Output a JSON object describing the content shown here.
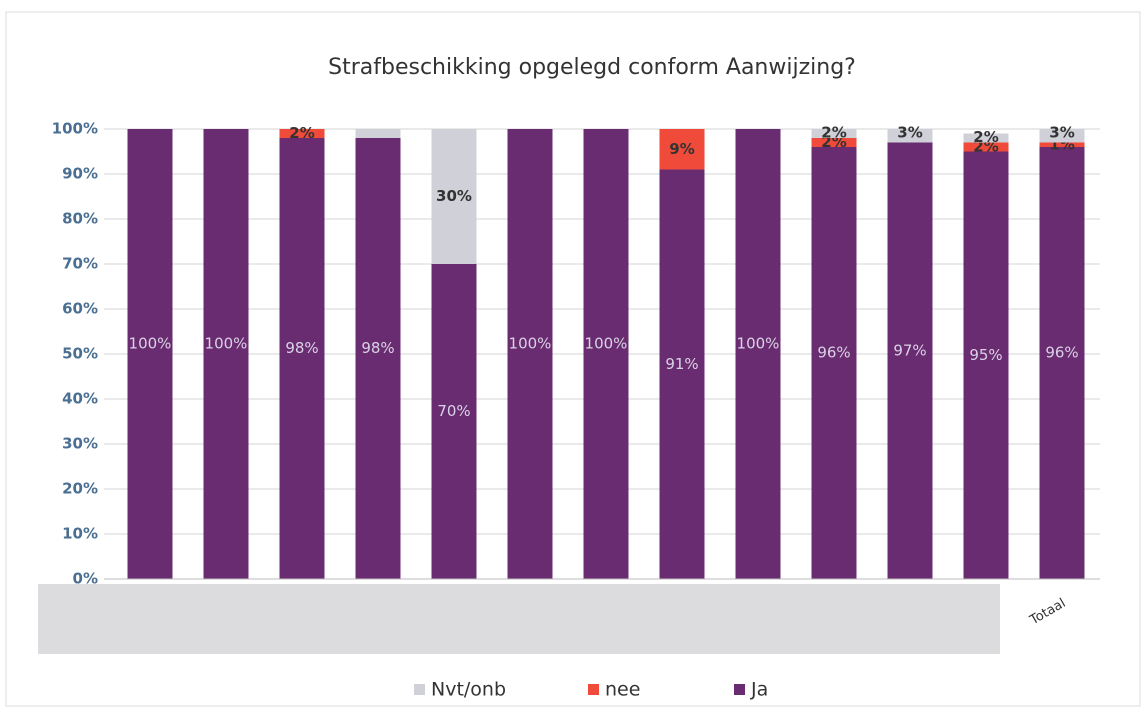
{
  "chart_data": {
    "type": "stacked_bar",
    "title": "Strafbeschikking opgelegd conform Aanwijzing?",
    "categories": [
      null,
      null,
      null,
      null,
      null,
      null,
      null,
      null,
      null,
      null,
      null,
      null,
      "Totaal"
    ],
    "series": [
      {
        "name": "Ja",
        "color": "#6a2c70",
        "values": [
          100,
          100,
          98,
          98,
          70,
          100,
          100,
          91,
          100,
          96,
          97,
          95,
          96
        ],
        "value_labels": [
          "100%",
          "100%",
          "98%",
          "98%",
          "70%",
          "100%",
          "100%",
          "91%",
          "100%",
          "96%",
          "97%",
          "95%",
          "96%"
        ]
      },
      {
        "name": "nee",
        "color": "#f04a3a",
        "values": [
          0,
          0,
          2,
          0,
          0,
          0,
          0,
          9,
          0,
          2,
          0,
          2,
          1
        ],
        "value_labels": [
          null,
          null,
          "2%",
          null,
          null,
          null,
          null,
          "9%",
          null,
          "2%",
          null,
          "2%",
          "1%"
        ]
      },
      {
        "name": "Nvt/onb",
        "color": "#cfd0d8",
        "values": [
          0,
          0,
          0,
          2,
          30,
          0,
          0,
          0,
          0,
          2,
          3,
          2,
          3
        ],
        "value_labels": [
          null,
          null,
          null,
          null,
          "30%",
          null,
          null,
          null,
          null,
          "2%",
          "3%",
          "2%",
          "3%"
        ]
      }
    ],
    "ylim": [
      0,
      100
    ],
    "yticks": [
      {
        "value": 0,
        "label": "0%"
      },
      {
        "value": 10,
        "label": "10%"
      },
      {
        "value": 20,
        "label": "20%"
      },
      {
        "value": 30,
        "label": "30%"
      },
      {
        "value": 40,
        "label": "40%"
      },
      {
        "value": 50,
        "label": "50%"
      },
      {
        "value": 60,
        "label": "60%"
      },
      {
        "value": 70,
        "label": "70%"
      },
      {
        "value": 80,
        "label": "80%"
      },
      {
        "value": 90,
        "label": "90%"
      },
      {
        "value": 100,
        "label": "100%"
      }
    ],
    "grid": true,
    "legend": "bottom"
  }
}
